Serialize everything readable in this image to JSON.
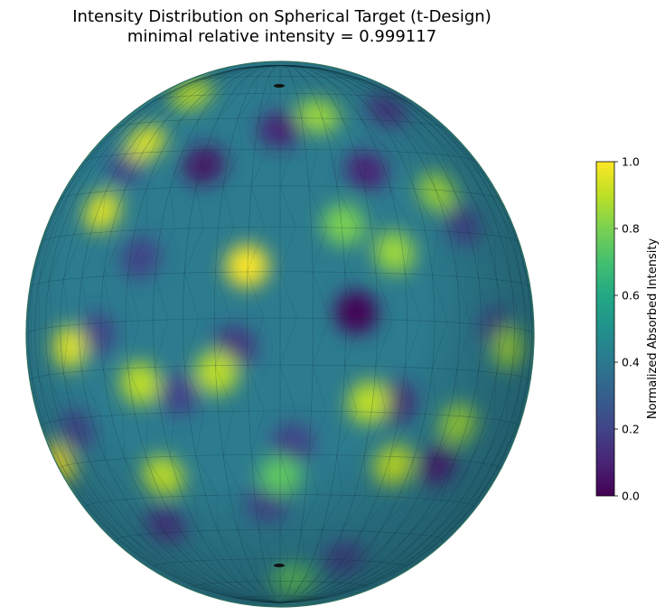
{
  "chart_data": {
    "type": "heatmap",
    "subtype": "3d-sphere-surface",
    "title": "Intensity Distribution on Spherical Target (t-Design)",
    "subtitle": "minimal relative intensity = 0.999117",
    "colormap": "viridis",
    "colorbar": {
      "label": "Normalized Absorbed Intensity",
      "range": [
        0.0,
        1.0
      ],
      "ticks": [
        0.0,
        0.2,
        0.4,
        0.6,
        0.8,
        1.0
      ],
      "tick_labels": [
        "0.0",
        "0.2",
        "0.4",
        "0.6",
        "0.8",
        "1.0"
      ]
    },
    "mesh": "triangulated wireframe with latitude/longitude lines",
    "pole_marks": true,
    "hotspots": [
      {
        "pos": [
          -0.3,
          -0.62
        ],
        "v": 0.05
      },
      {
        "pos": [
          0.0,
          -0.75
        ],
        "v": 0.1
      },
      {
        "pos": [
          0.34,
          -0.6
        ],
        "v": 0.1
      },
      {
        "pos": [
          -0.55,
          -0.28
        ],
        "v": 0.2
      },
      {
        "pos": [
          -0.18,
          0.05
        ],
        "v": 0.15
      },
      {
        "pos": [
          0.3,
          -0.08
        ],
        "v": 0.0
      },
      {
        "pos": [
          0.05,
          0.4
        ],
        "v": 0.2
      },
      {
        "pos": [
          0.45,
          0.25
        ],
        "v": 0.1
      },
      {
        "pos": [
          -0.72,
          0.0
        ],
        "v": 0.2
      },
      {
        "pos": [
          -0.8,
          0.35
        ],
        "v": 0.2
      },
      {
        "pos": [
          0.62,
          0.48
        ],
        "v": 0.1
      },
      {
        "pos": [
          0.85,
          -0.02
        ],
        "v": 0.2
      },
      {
        "pos": [
          -0.45,
          0.7
        ],
        "v": 0.15
      },
      {
        "pos": [
          0.25,
          0.82
        ],
        "v": 0.2
      },
      {
        "pos": [
          -0.05,
          0.62
        ],
        "v": 0.2
      },
      {
        "pos": [
          0.72,
          -0.4
        ],
        "v": 0.2
      },
      {
        "pos": [
          -0.6,
          -0.62
        ],
        "v": 0.2
      },
      {
        "pos": [
          0.42,
          -0.82
        ],
        "v": 0.15
      },
      {
        "pos": [
          -0.4,
          0.22
        ],
        "v": 0.2
      },
      {
        "pos": [
          -0.7,
          -0.45
        ],
        "v": 0.95
      },
      {
        "pos": [
          -0.53,
          -0.7
        ],
        "v": 0.95
      },
      {
        "pos": [
          -0.13,
          -0.25
        ],
        "v": 1.0
      },
      {
        "pos": [
          -0.55,
          0.18
        ],
        "v": 0.9
      },
      {
        "pos": [
          -0.83,
          0.05
        ],
        "v": 0.95
      },
      {
        "pos": [
          -0.87,
          0.47
        ],
        "v": 1.0
      },
      {
        "pos": [
          0.15,
          -0.8
        ],
        "v": 0.85
      },
      {
        "pos": [
          0.62,
          -0.52
        ],
        "v": 0.85
      },
      {
        "pos": [
          0.25,
          -0.4
        ],
        "v": 0.8
      },
      {
        "pos": [
          0.45,
          -0.3
        ],
        "v": 0.85
      },
      {
        "pos": [
          -0.25,
          0.14
        ],
        "v": 0.9
      },
      {
        "pos": [
          0.35,
          0.25
        ],
        "v": 0.9
      },
      {
        "pos": [
          -0.46,
          0.52
        ],
        "v": 0.9
      },
      {
        "pos": [
          -0.35,
          -0.88
        ],
        "v": 0.9
      },
      {
        "pos": [
          0.7,
          0.33
        ],
        "v": 0.85
      },
      {
        "pos": [
          0.45,
          0.48
        ],
        "v": 0.9
      },
      {
        "pos": [
          0.9,
          0.05
        ],
        "v": 0.85
      },
      {
        "pos": [
          0.95,
          -0.55
        ],
        "v": 0.8
      },
      {
        "pos": [
          0.0,
          0.52
        ],
        "v": 0.75
      },
      {
        "pos": [
          0.05,
          0.9
        ],
        "v": 0.75
      },
      {
        "pos": [
          -0.75,
          -0.85
        ],
        "v": 0.8
      }
    ]
  }
}
